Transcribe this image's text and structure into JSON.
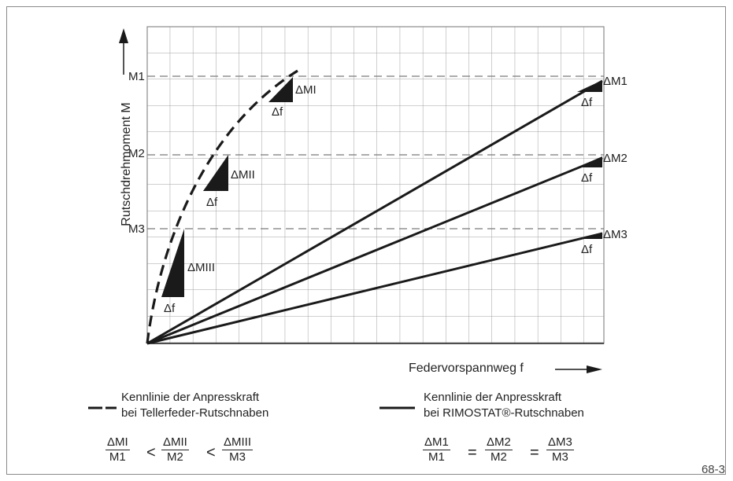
{
  "diagram": {
    "y_axis_label": "Rutschdrehmoment M",
    "x_axis_label": "Federvorspannweg f",
    "levels_left": [
      "M1",
      "M2",
      "M3"
    ],
    "levels_right": [
      "ΔM1",
      "ΔM2",
      "ΔM3"
    ],
    "curve_labels": [
      "ΔMI",
      "ΔMII",
      "ΔMIII"
    ],
    "delta_f": "Δf"
  },
  "legend": {
    "dashed_line_1": "Kennlinie der Anpresskraft",
    "dashed_line_2": "bei Tellerfeder-Rutschnaben",
    "solid_line_1": "Kennlinie der Anpresskraft",
    "solid_line_2": "bei RIMOSTAT®-Rutschnaben"
  },
  "formulas": {
    "left": [
      {
        "num": "ΔMI",
        "den": "M1"
      },
      {
        "num": "ΔMII",
        "den": "M2"
      },
      {
        "num": "ΔMIII",
        "den": "M3"
      }
    ],
    "left_operator": "<",
    "right": [
      {
        "num": "ΔM1",
        "den": "M1"
      },
      {
        "num": "ΔM2",
        "den": "M2"
      },
      {
        "num": "ΔM3",
        "den": "M3"
      }
    ],
    "right_operator": "="
  },
  "figure_number": "68-3",
  "colors": {
    "line": "#1a1a1a",
    "grid": "#9a9a9a",
    "frame": "#8a8a8a"
  }
}
